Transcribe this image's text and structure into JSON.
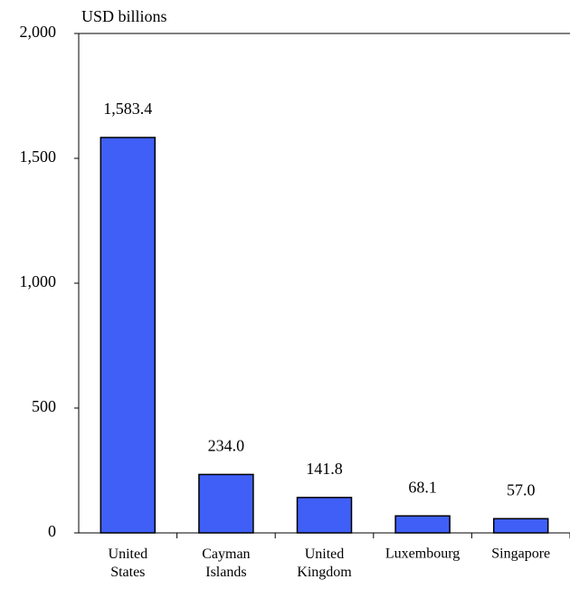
{
  "chart_data": {
    "type": "bar",
    "title": "USD billions",
    "categories": [
      "United States",
      "Cayman Islands",
      "United Kingdom",
      "Luxembourg",
      "Singapore"
    ],
    "values": [
      1583.4,
      234.0,
      141.8,
      68.1,
      57.0
    ],
    "value_labels": [
      "1,583.4",
      "234.0",
      "141.8",
      "68.1",
      "57.0"
    ],
    "color": "#3f5ff7",
    "ylim": [
      0,
      2000
    ],
    "yticks": [
      0,
      500,
      {
        "value": 1000,
        "label": "1,000"
      },
      {
        "value": 1500,
        "label": "1,500"
      },
      {
        "value": 2000,
        "label": "2,000"
      }
    ]
  }
}
